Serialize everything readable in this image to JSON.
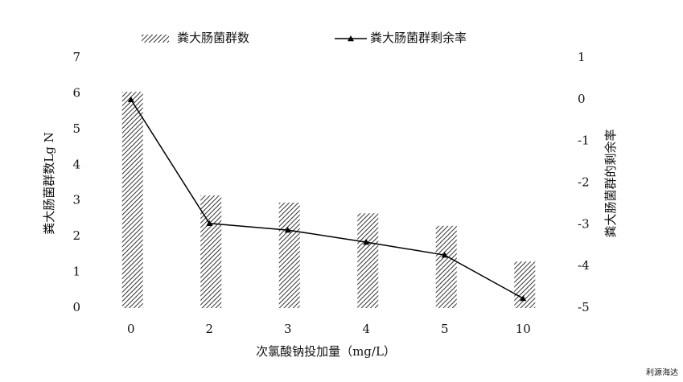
{
  "chart_data": {
    "type": "bar",
    "x_label": "次氯酸钠投加量（mg/L）",
    "y_label": "粪大肠菌群数Lg N",
    "y2_label": "粪大肠菌群的剩余率",
    "categories": [
      "0",
      "2",
      "3",
      "4",
      "5",
      "10"
    ],
    "series": [
      {
        "name": "粪大肠菌群数",
        "type": "bar",
        "color": "#000000",
        "values": [
          6.05,
          3.15,
          2.95,
          2.65,
          2.3,
          1.3
        ]
      },
      {
        "name": "粪大肠菌群剩余率",
        "type": "line",
        "axis": "y2",
        "color": "#000000",
        "values": [
          0,
          -2.97,
          -3.13,
          -3.42,
          -3.73,
          -4.77
        ]
      }
    ],
    "ylim": [
      0,
      7
    ],
    "yticks": [
      0,
      1,
      2,
      3,
      4,
      5,
      6,
      7
    ],
    "y2lim": [
      -5,
      1
    ],
    "y2ticks": [
      -5,
      -4,
      -3,
      -2,
      -1,
      0,
      1
    ],
    "grid": false,
    "legend": "top"
  },
  "watermark": "利源海达"
}
